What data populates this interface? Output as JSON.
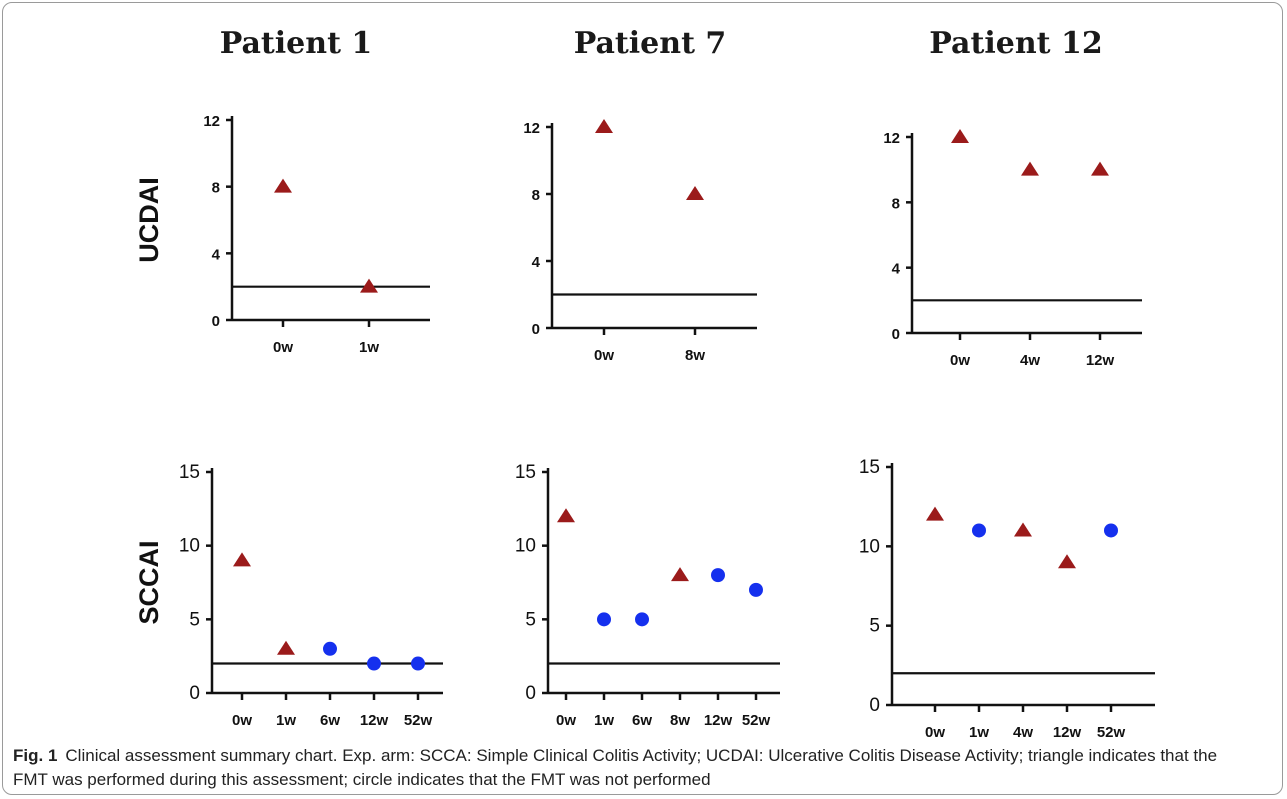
{
  "titles": [
    "Patient 1",
    "Patient 7",
    "Patient 12"
  ],
  "caption": {
    "label": "Fig. 1",
    "text": "Clinical assessment summary chart. Exp. arm: SCCA: Simple Clinical Colitis Activity; UCDAI: Ulcerative Colitis Disease Activity; triangle indicates that the FMT was performed during this assessment; circle indicates that the FMT was not performed"
  },
  "colors": {
    "triangle": "#9b1b1b",
    "circle": "#1530ee",
    "axis": "#111111"
  },
  "chart_data": [
    {
      "type": "scatter",
      "title": "Patient 1",
      "ylabel": "UCDAI",
      "categories": [
        "0w",
        "1w"
      ],
      "ylim": [
        0,
        12
      ],
      "yticks": [
        0,
        4,
        8,
        12
      ],
      "threshold": 2,
      "points": [
        {
          "x": "0w",
          "y": 8,
          "marker": "triangle"
        },
        {
          "x": "1w",
          "y": 2,
          "marker": "triangle"
        }
      ]
    },
    {
      "type": "scatter",
      "title": "Patient 7",
      "ylabel": "",
      "categories": [
        "0w",
        "8w"
      ],
      "ylim": [
        0,
        12
      ],
      "yticks": [
        0,
        4,
        8,
        12
      ],
      "threshold": 2,
      "points": [
        {
          "x": "0w",
          "y": 12,
          "marker": "triangle"
        },
        {
          "x": "8w",
          "y": 8,
          "marker": "triangle"
        }
      ]
    },
    {
      "type": "scatter",
      "title": "Patient 12",
      "ylabel": "",
      "categories": [
        "0w",
        "4w",
        "12w"
      ],
      "ylim": [
        0,
        12
      ],
      "yticks": [
        0,
        4,
        8,
        12
      ],
      "threshold": 2,
      "points": [
        {
          "x": "0w",
          "y": 12,
          "marker": "triangle"
        },
        {
          "x": "4w",
          "y": 10,
          "marker": "triangle"
        },
        {
          "x": "12w",
          "y": 10,
          "marker": "triangle"
        }
      ]
    },
    {
      "type": "scatter",
      "title": "",
      "ylabel": "SCCAI",
      "categories": [
        "0w",
        "1w",
        "6w",
        "12w",
        "52w"
      ],
      "ylim": [
        0,
        15
      ],
      "yticks": [
        0,
        5,
        10,
        15
      ],
      "threshold": 2,
      "points": [
        {
          "x": "0w",
          "y": 9,
          "marker": "triangle"
        },
        {
          "x": "1w",
          "y": 3,
          "marker": "triangle"
        },
        {
          "x": "6w",
          "y": 3,
          "marker": "circle"
        },
        {
          "x": "12w",
          "y": 2,
          "marker": "circle"
        },
        {
          "x": "52w",
          "y": 2,
          "marker": "circle"
        }
      ]
    },
    {
      "type": "scatter",
      "title": "",
      "ylabel": "",
      "categories": [
        "0w",
        "1w",
        "6w",
        "8w",
        "12w",
        "52w"
      ],
      "ylim": [
        0,
        15
      ],
      "yticks": [
        0,
        5,
        10,
        15
      ],
      "threshold": 2,
      "points": [
        {
          "x": "0w",
          "y": 12,
          "marker": "triangle"
        },
        {
          "x": "1w",
          "y": 5,
          "marker": "circle"
        },
        {
          "x": "6w",
          "y": 5,
          "marker": "circle"
        },
        {
          "x": "8w",
          "y": 8,
          "marker": "triangle"
        },
        {
          "x": "12w",
          "y": 8,
          "marker": "circle"
        },
        {
          "x": "52w",
          "y": 7,
          "marker": "circle"
        }
      ]
    },
    {
      "type": "scatter",
      "title": "",
      "ylabel": "",
      "categories": [
        "0w",
        "1w",
        "4w",
        "12w",
        "52w"
      ],
      "ylim": [
        0,
        15
      ],
      "yticks": [
        0,
        5,
        10,
        15
      ],
      "threshold": 2,
      "points": [
        {
          "x": "0w",
          "y": 12,
          "marker": "triangle"
        },
        {
          "x": "1w",
          "y": 11,
          "marker": "circle"
        },
        {
          "x": "4w",
          "y": 11,
          "marker": "triangle"
        },
        {
          "x": "12w",
          "y": 9,
          "marker": "triangle"
        },
        {
          "x": "52w",
          "y": 11,
          "marker": "circle"
        }
      ]
    }
  ]
}
